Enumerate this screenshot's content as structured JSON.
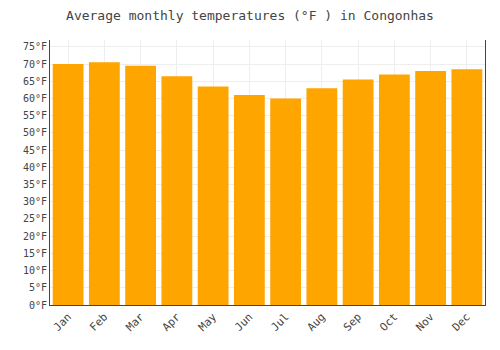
{
  "chart_data": {
    "type": "bar",
    "title": "Average monthly temperatures (°F ) in Congonhas",
    "categories": [
      "Jan",
      "Feb",
      "Mar",
      "Apr",
      "May",
      "Jun",
      "Jul",
      "Aug",
      "Sep",
      "Oct",
      "Nov",
      "Dec"
    ],
    "values": [
      70,
      70.5,
      69.5,
      66.5,
      63.5,
      61,
      60,
      63,
      65.5,
      67,
      68,
      68.5
    ],
    "color": "#FFA500",
    "ylim": [
      0,
      77
    ],
    "yticks": [
      {
        "value": 0,
        "label": "0°F"
      },
      {
        "value": 5,
        "label": "5°F"
      },
      {
        "value": 10,
        "label": "10°F"
      },
      {
        "value": 15,
        "label": "15°F"
      },
      {
        "value": 20,
        "label": "20°F"
      },
      {
        "value": 25,
        "label": "25°F"
      },
      {
        "value": 30,
        "label": "30°F"
      },
      {
        "value": 35,
        "label": "35°F"
      },
      {
        "value": 40,
        "label": "40°F"
      },
      {
        "value": 45,
        "label": "45°F"
      },
      {
        "value": 50,
        "label": "50°F"
      },
      {
        "value": 55,
        "label": "55°F"
      },
      {
        "value": 60,
        "label": "60°F"
      },
      {
        "value": 65,
        "label": "65°F"
      },
      {
        "value": 70,
        "label": "70°F"
      },
      {
        "value": 75,
        "label": "75°F"
      }
    ],
    "grid": true
  }
}
